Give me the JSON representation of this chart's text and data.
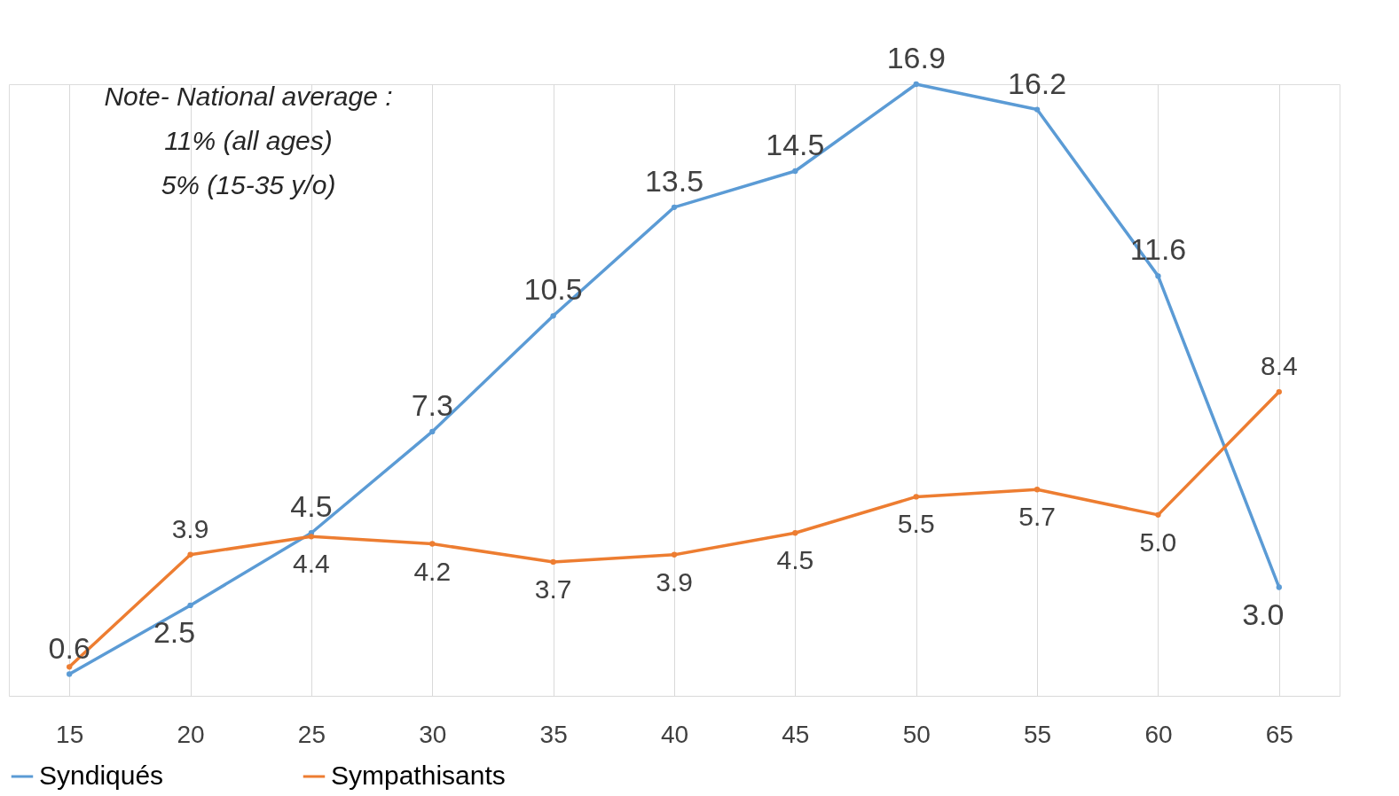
{
  "chart_data": {
    "type": "line",
    "categories": [
      "15",
      "20",
      "25",
      "30",
      "35",
      "40",
      "45",
      "50",
      "55",
      "60",
      "65"
    ],
    "series": [
      {
        "name": "Syndiqués",
        "color": "#5b9bd5",
        "values": [
          0.6,
          2.5,
          4.5,
          7.3,
          10.5,
          13.5,
          14.5,
          16.9,
          16.2,
          11.6,
          3.0
        ],
        "value_labels": [
          "0.6",
          "2.5",
          "4.5",
          "7.3",
          "10.5",
          "13.5",
          "14.5",
          "16.9",
          "16.2",
          "11.6",
          "3.0"
        ]
      },
      {
        "name": "Sympathisants",
        "color": "#ed7d31",
        "values": [
          0.8,
          3.9,
          4.4,
          4.2,
          3.7,
          3.9,
          4.5,
          5.5,
          5.7,
          5.0,
          8.4
        ],
        "value_labels": [
          null,
          "3.9",
          "4.4",
          "4.2",
          "3.7",
          "3.9",
          "4.5",
          "5.5",
          "5.7",
          "5.0",
          "8.4"
        ]
      }
    ],
    "annotations": [
      "Note- National average :\n11% (all ages)\n5% (15-35 y/o)"
    ],
    "grid": "x",
    "legend": "bottom",
    "marker": "circle",
    "line_style": "solid"
  }
}
